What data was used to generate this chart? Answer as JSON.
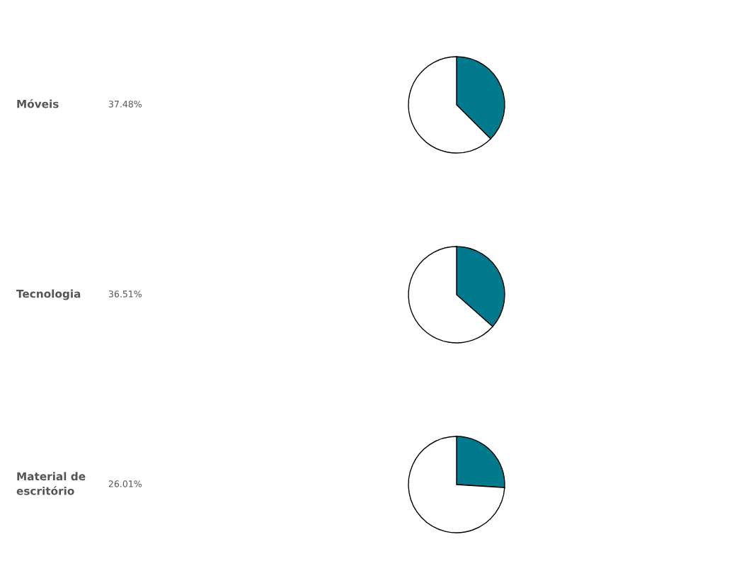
{
  "chart_data": [
    {
      "type": "pie",
      "ylabel": "Móveis",
      "categories": [
        null,
        null
      ],
      "values": [
        37.48,
        62.52
      ],
      "colors": [
        "#007a8c",
        "#ffffff"
      ],
      "annotations": [
        "37.48%"
      ]
    },
    {
      "type": "pie",
      "ylabel": "Tecnologia",
      "categories": [
        null,
        null
      ],
      "values": [
        36.51,
        63.49
      ],
      "colors": [
        "#007a8c",
        "#ffffff"
      ],
      "annotations": [
        "36.51%"
      ]
    },
    {
      "type": "pie",
      "ylabel": "Material de\nescritório",
      "categories": [
        null,
        null
      ],
      "values": [
        26.01,
        73.99
      ],
      "colors": [
        "#007a8c",
        "#ffffff"
      ],
      "annotations": [
        "26.01%"
      ]
    }
  ]
}
